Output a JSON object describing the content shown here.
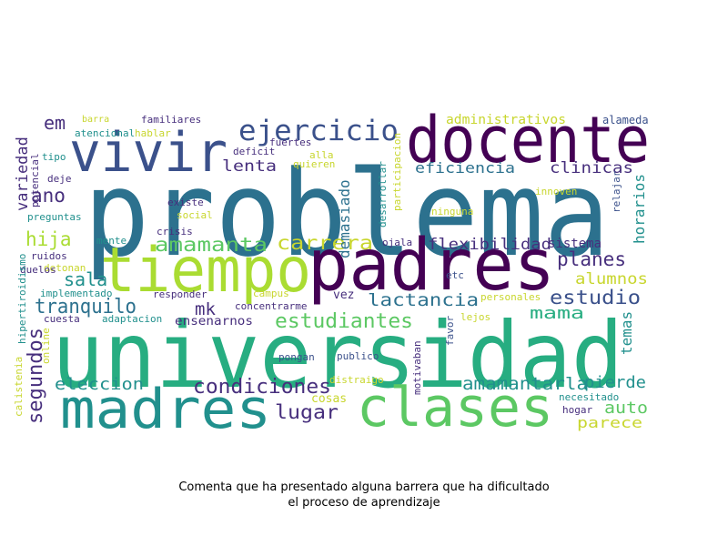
{
  "caption": {
    "line1": "Comenta que ha presentado alguna barrera que ha dificultado",
    "line2": "el proceso de aprendizaje"
  },
  "colors": {
    "purple": "#440154",
    "indigo": "#472f7d",
    "slate": "#3b518b",
    "blue": "#2c718e",
    "teal": "#21908d",
    "green": "#27ad81",
    "lightgreen": "#5cc863",
    "lime": "#aadc32",
    "yellow": "#c8d62e"
  },
  "words": [
    {
      "text": "problema",
      "color": "blue"
    },
    {
      "text": "universidad",
      "color": "green"
    },
    {
      "text": "padres",
      "color": "purple"
    },
    {
      "text": "tiempo",
      "color": "lime"
    },
    {
      "text": "docente",
      "color": "purple"
    },
    {
      "text": "vivir",
      "color": "slate"
    },
    {
      "text": "madres",
      "color": "teal"
    },
    {
      "text": "clases",
      "color": "lightgreen"
    },
    {
      "text": "ejercicio",
      "color": "slate"
    },
    {
      "text": "condiciones",
      "color": "indigo"
    },
    {
      "text": "estudiantes",
      "color": "lightgreen"
    },
    {
      "text": "lactancia",
      "color": "blue"
    },
    {
      "text": "amamantarla",
      "color": "teal"
    },
    {
      "text": "amamanta",
      "color": "lightgreen"
    },
    {
      "text": "carrera",
      "color": "yellow"
    },
    {
      "text": "flexibilidad",
      "color": "indigo"
    },
    {
      "text": "planes",
      "color": "indigo"
    },
    {
      "text": "estudio",
      "color": "slate"
    },
    {
      "text": "tranquilo",
      "color": "blue"
    },
    {
      "text": "segundos",
      "color": "indigo"
    },
    {
      "text": "eleccion",
      "color": "teal"
    },
    {
      "text": "lugar",
      "color": "indigo"
    },
    {
      "text": "mama",
      "color": "green"
    },
    {
      "text": "temas",
      "color": "teal"
    },
    {
      "text": "pierde",
      "color": "teal"
    },
    {
      "text": "auto",
      "color": "lightgreen"
    },
    {
      "text": "parece",
      "color": "yellow"
    },
    {
      "text": "alumnos",
      "color": "yellow"
    },
    {
      "text": "horarios",
      "color": "teal"
    },
    {
      "text": "clinicas",
      "color": "indigo"
    },
    {
      "text": "eficiencia",
      "color": "blue"
    },
    {
      "text": "demasiado",
      "color": "blue"
    },
    {
      "text": "lenta",
      "color": "indigo"
    },
    {
      "text": "em",
      "color": "indigo"
    },
    {
      "text": "ano",
      "color": "indigo"
    },
    {
      "text": "hija",
      "color": "lime"
    },
    {
      "text": "sala",
      "color": "teal"
    },
    {
      "text": "mk",
      "color": "indigo"
    },
    {
      "text": "variedad",
      "color": "indigo"
    },
    {
      "text": "ensenarnos",
      "color": "indigo"
    },
    {
      "text": "vez",
      "color": "indigo"
    },
    {
      "text": "cosas",
      "color": "yellow"
    },
    {
      "text": "administrativos",
      "color": "yellow"
    },
    {
      "text": "alameda",
      "color": "slate"
    },
    {
      "text": "barra",
      "color": "yellow"
    },
    {
      "text": "familiares",
      "color": "indigo"
    },
    {
      "text": "atencional",
      "color": "teal"
    },
    {
      "text": "hablar",
      "color": "yellow"
    },
    {
      "text": "fuertes",
      "color": "indigo"
    },
    {
      "text": "deficit",
      "color": "indigo"
    },
    {
      "text": "alla",
      "color": "yellow"
    },
    {
      "text": "quieren",
      "color": "yellow"
    },
    {
      "text": "tipo",
      "color": "teal"
    },
    {
      "text": "deje",
      "color": "indigo"
    },
    {
      "text": "desarrollar",
      "color": "teal"
    },
    {
      "text": "participacion",
      "color": "yellow"
    },
    {
      "text": "innoven",
      "color": "yellow"
    },
    {
      "text": "relajar",
      "color": "slate"
    },
    {
      "text": "existe",
      "color": "indigo"
    },
    {
      "text": "social",
      "color": "yellow"
    },
    {
      "text": "crisis",
      "color": "indigo"
    },
    {
      "text": "preguntas",
      "color": "teal"
    },
    {
      "text": "potencial",
      "color": "indigo"
    },
    {
      "text": "ninguna",
      "color": "yellow"
    },
    {
      "text": "sistema",
      "color": "indigo"
    },
    {
      "text": "ojala",
      "color": "indigo"
    },
    {
      "text": "mente",
      "color": "teal"
    },
    {
      "text": "ruidos",
      "color": "indigo"
    },
    {
      "text": "detonan",
      "color": "yellow"
    },
    {
      "text": "duelos",
      "color": "indigo"
    },
    {
      "text": "implementado",
      "color": "teal"
    },
    {
      "text": "responder",
      "color": "indigo"
    },
    {
      "text": "campus",
      "color": "yellow"
    },
    {
      "text": "etc",
      "color": "slate"
    },
    {
      "text": "personales",
      "color": "yellow"
    },
    {
      "text": "hipertiroidismo",
      "color": "teal"
    },
    {
      "text": "concentrarme",
      "color": "indigo"
    },
    {
      "text": "adaptacion",
      "color": "teal"
    },
    {
      "text": "cuesta",
      "color": "indigo"
    },
    {
      "text": "lejos",
      "color": "yellow"
    },
    {
      "text": "favor",
      "color": "slate"
    },
    {
      "text": "online",
      "color": "yellow"
    },
    {
      "text": "calistenia",
      "color": "yellow"
    },
    {
      "text": "pongan",
      "color": "slate"
    },
    {
      "text": "publico",
      "color": "slate"
    },
    {
      "text": "motivaban",
      "color": "indigo"
    },
    {
      "text": "distraigo",
      "color": "yellow"
    },
    {
      "text": "necesitado",
      "color": "teal"
    },
    {
      "text": "hogar",
      "color": "indigo"
    }
  ]
}
